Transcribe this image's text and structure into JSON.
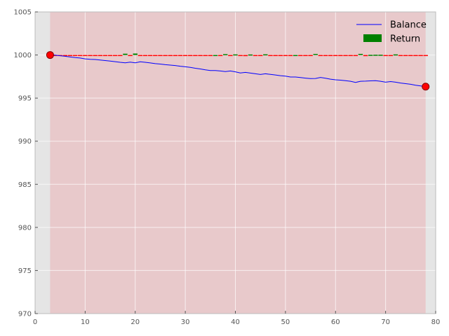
{
  "chart_data": {
    "type": "line",
    "title": "",
    "xlabel": "",
    "ylabel": "",
    "xlim": [
      0,
      80
    ],
    "ylim": [
      970,
      1005
    ],
    "xticks": [
      0,
      10,
      20,
      30,
      40,
      50,
      60,
      70,
      80
    ],
    "yticks": [
      970,
      975,
      980,
      985,
      990,
      995,
      1000,
      1005
    ],
    "grid": true,
    "legend_position": "top-right",
    "shaded_region": {
      "x": [
        3,
        78
      ],
      "color": "#e8c9cb"
    },
    "legend": [
      {
        "label": "Balance",
        "kind": "line",
        "color": "#0000ff"
      },
      {
        "label": "Return",
        "kind": "bar",
        "color": "#008000"
      }
    ],
    "series": [
      {
        "name": "Balance",
        "type": "line",
        "color": "#0000ff",
        "x": [
          3,
          4,
          5,
          6,
          7,
          8,
          9,
          10,
          11,
          12,
          13,
          14,
          15,
          16,
          17,
          18,
          19,
          20,
          21,
          22,
          23,
          24,
          25,
          26,
          27,
          28,
          29,
          30,
          31,
          32,
          33,
          34,
          35,
          36,
          37,
          38,
          39,
          40,
          41,
          42,
          43,
          44,
          45,
          46,
          47,
          48,
          49,
          50,
          51,
          52,
          53,
          54,
          55,
          56,
          57,
          58,
          59,
          60,
          61,
          62,
          63,
          64,
          65,
          66,
          67,
          68,
          69,
          70,
          71,
          72,
          73,
          74,
          75,
          76,
          77,
          78
        ],
        "values": [
          1000.0,
          999.98,
          999.92,
          999.85,
          999.77,
          999.7,
          999.65,
          999.55,
          999.5,
          999.48,
          999.42,
          999.36,
          999.3,
          999.23,
          999.15,
          999.1,
          999.18,
          999.1,
          999.22,
          999.15,
          999.08,
          999.0,
          998.95,
          998.88,
          998.83,
          998.78,
          998.7,
          998.63,
          998.56,
          998.46,
          998.38,
          998.28,
          998.2,
          998.2,
          998.15,
          998.08,
          998.15,
          998.05,
          997.92,
          997.98,
          997.9,
          997.82,
          997.74,
          997.82,
          997.76,
          997.68,
          997.6,
          997.55,
          997.45,
          997.45,
          997.38,
          997.32,
          997.26,
          997.28,
          997.4,
          997.3,
          997.2,
          997.12,
          997.08,
          997.02,
          996.95,
          996.82,
          996.95,
          996.97,
          997.0,
          997.02,
          996.95,
          996.85,
          996.92,
          996.85,
          996.75,
          996.68,
          996.6,
          996.5,
          996.42,
          996.33
        ]
      },
      {
        "name": "Return",
        "type": "bar",
        "color_positive": "#008000",
        "color_negative": "#ff0000",
        "x": [
          4,
          5,
          6,
          7,
          8,
          9,
          10,
          11,
          12,
          13,
          14,
          15,
          16,
          17,
          18,
          19,
          20,
          21,
          22,
          23,
          24,
          25,
          26,
          27,
          28,
          29,
          30,
          31,
          32,
          33,
          34,
          35,
          36,
          37,
          38,
          39,
          40,
          41,
          42,
          43,
          44,
          45,
          46,
          47,
          48,
          49,
          50,
          51,
          52,
          53,
          54,
          55,
          56,
          57,
          58,
          59,
          60,
          61,
          62,
          63,
          64,
          65,
          66,
          67,
          68,
          69,
          70,
          71,
          72,
          73,
          74,
          75,
          76,
          77,
          78
        ],
        "values": [
          -0.02,
          -0.06,
          -0.07,
          -0.08,
          -0.07,
          -0.05,
          -0.1,
          -0.05,
          -0.02,
          -0.06,
          -0.06,
          -0.06,
          -0.07,
          -0.08,
          0.15,
          -0.1,
          0.17,
          -0.12,
          -0.07,
          -0.07,
          -0.08,
          -0.05,
          -0.07,
          -0.05,
          -0.05,
          -0.08,
          -0.07,
          -0.07,
          -0.1,
          -0.08,
          -0.1,
          -0.08,
          0.0,
          -0.05,
          0.1,
          -0.08,
          0.07,
          -0.1,
          -0.13,
          0.06,
          -0.08,
          -0.08,
          0.08,
          -0.06,
          -0.08,
          -0.08,
          -0.05,
          -0.1,
          0.0,
          -0.07,
          -0.06,
          -0.06,
          0.12,
          -0.1,
          -0.1,
          -0.1,
          -0.08,
          -0.04,
          -0.06,
          -0.06,
          -0.07,
          0.13,
          -0.13,
          0.02,
          0.03,
          0.03,
          -0.07,
          -0.1,
          0.07,
          -0.07,
          -0.07,
          -0.07,
          -0.08,
          -0.08,
          -0.09
        ]
      }
    ],
    "markers": [
      {
        "x": 3,
        "y": 1000.0,
        "color": "#ff0000"
      },
      {
        "x": 78,
        "y": 996.33,
        "color": "#ff0000"
      }
    ]
  }
}
